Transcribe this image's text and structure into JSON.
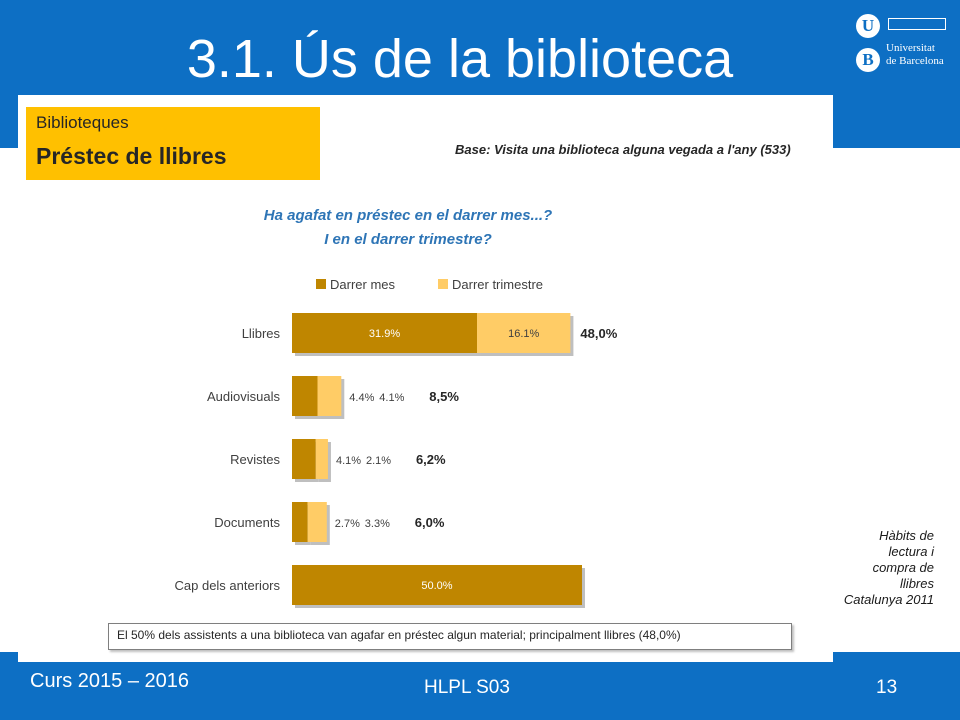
{
  "slide": {
    "title": "3.1. Ús de la biblioteca",
    "course": "Curs 2015 – 2016",
    "session": "HLPL S03",
    "page": "13",
    "source_note": "Hàbits de lectura i compra de llibres Catalunya 2011",
    "colors": {
      "band": "#0d6fc4",
      "header": "#ffc000",
      "series_month": "#bf8600",
      "series_quarter": "#ffcc66",
      "question": "#2e75b6"
    }
  },
  "logo": {
    "letter_top": "U",
    "letter_bottom": "B",
    "line1": "Universitat",
    "line2": "de Barcelona"
  },
  "panel": {
    "header_sub": "Biblioteques",
    "header_main": "Préstec de llibres",
    "base": "Base: Visita una biblioteca alguna vegada a l'any (533)",
    "question_line1": "Ha agafat en préstec en el darrer mes...?",
    "question_line2": "I en el darrer trimestre?",
    "footnote": "El 50% dels assistents a una biblioteca van agafar en préstec algun material; principalment llibres (48,0%)"
  },
  "chart_data": {
    "type": "bar",
    "orientation": "horizontal",
    "stacked": true,
    "legend_position": "top",
    "categories": [
      "Llibres",
      "Audiovisuals",
      "Revistes",
      "Documents",
      "Cap dels anteriors"
    ],
    "series": [
      {
        "name": "Darrer mes",
        "values": [
          31.9,
          4.4,
          4.1,
          2.7,
          50.0
        ],
        "labels": [
          "31.9%",
          "4.4%",
          "4.1%",
          "2.7%",
          "50.0%"
        ]
      },
      {
        "name": "Darrer trimestre",
        "values": [
          16.1,
          4.1,
          2.1,
          3.3,
          null
        ],
        "labels": [
          "16.1%",
          "4.1%",
          "2.1%",
          "3.3%",
          ""
        ]
      }
    ],
    "totals": [
      "48,0%",
      "8,5%",
      "6,2%",
      "6,0%",
      ""
    ]
  }
}
